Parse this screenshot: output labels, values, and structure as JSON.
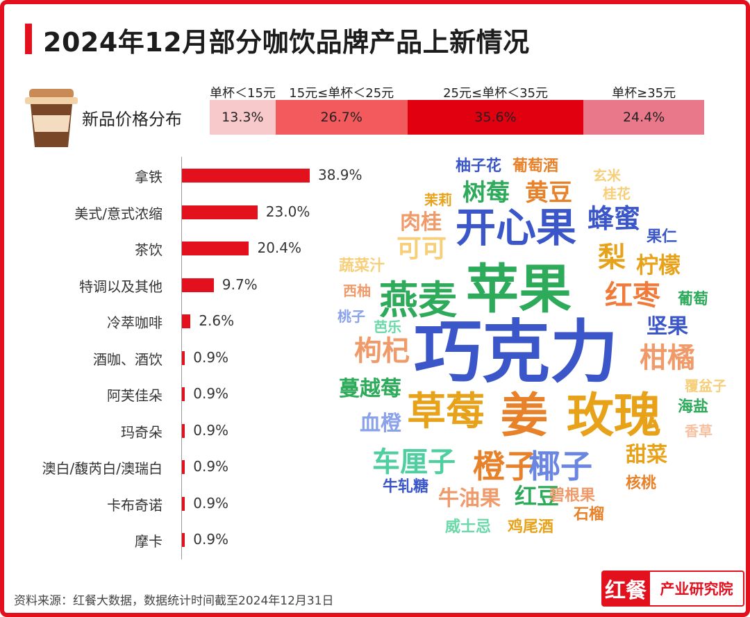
{
  "title": "2024年12月部分咖饮品牌产品上新情况",
  "colors": {
    "accent": "#e3101e"
  },
  "price_distribution": {
    "label": "新品价格分布",
    "segments": [
      {
        "header": "单杯＜15元",
        "value": "13.3%",
        "percent": 13.3,
        "color": "#f8c9cb"
      },
      {
        "header": "15元≤单杯＜25元",
        "value": "26.7%",
        "percent": 26.7,
        "color": "#f25a5e"
      },
      {
        "header": "25元≤单杯＜35元",
        "value": "35.6%",
        "percent": 35.6,
        "color": "#e0000f"
      },
      {
        "header": "单杯≥35元",
        "value": "24.4%",
        "percent": 24.4,
        "color": "#e9788a"
      }
    ]
  },
  "chart_data": {
    "type": "bar",
    "categories": [
      "拿铁",
      "美式/意式浓缩",
      "茶饮",
      "特调以及其他",
      "冷萃咖啡",
      "酒咖、酒饮",
      "阿芙佳朵",
      "玛奇朵",
      "澳白/馥芮白/澳瑞白",
      "卡布奇诺",
      "摩卡"
    ],
    "values": [
      38.9,
      23.0,
      20.4,
      9.7,
      2.6,
      0.9,
      0.9,
      0.9,
      0.9,
      0.9,
      0.9
    ],
    "labels": [
      "38.9%",
      "23.0%",
      "20.4%",
      "9.7%",
      "2.6%",
      "0.9%",
      "0.9%",
      "0.9%",
      "0.9%",
      "0.9%",
      "0.9%"
    ],
    "orientation": "horizontal",
    "color": "#e3101e"
  },
  "word_cloud": [
    {
      "text": "巧克力",
      "color": "#3a56c9"
    },
    {
      "text": "苹果",
      "color": "#2daa5a"
    },
    {
      "text": "开心果",
      "color": "#3a56c9"
    },
    {
      "text": "姜",
      "color": "#e8822a"
    },
    {
      "text": "玫瑰",
      "color": "#e8a21a"
    },
    {
      "text": "燕麦",
      "color": "#2daa5a"
    },
    {
      "text": "草莓",
      "color": "#e8a21a"
    },
    {
      "text": "橙子",
      "color": "#e8822a"
    },
    {
      "text": "椰子",
      "color": "#6a86e0"
    },
    {
      "text": "红枣",
      "color": "#f07a3a"
    },
    {
      "text": "梨",
      "color": "#e8a21a"
    },
    {
      "text": "车厘子",
      "color": "#4fcfa0"
    },
    {
      "text": "枸杞",
      "color": "#f09a6a"
    },
    {
      "text": "柑橘",
      "color": "#f09a6a"
    },
    {
      "text": "蜂蜜",
      "color": "#3a56c9"
    },
    {
      "text": "树莓",
      "color": "#2daa5a"
    },
    {
      "text": "黄豆",
      "color": "#e8822a"
    },
    {
      "text": "可可",
      "color": "#f7cf7a"
    },
    {
      "text": "柠檬",
      "color": "#e8a21a"
    },
    {
      "text": "坚果",
      "color": "#3a56c9"
    },
    {
      "text": "蔓越莓",
      "color": "#2daa5a"
    },
    {
      "text": "血橙",
      "color": "#8aa2ea"
    },
    {
      "text": "肉桂",
      "color": "#f09a6a"
    },
    {
      "text": "红豆",
      "color": "#2daa5a"
    },
    {
      "text": "牛油果",
      "color": "#f09a6a"
    },
    {
      "text": "甜菜",
      "color": "#e8a21a"
    },
    {
      "text": "柚子花",
      "color": "#3a56c9"
    },
    {
      "text": "葡萄酒",
      "color": "#e8822a"
    },
    {
      "text": "玄米",
      "color": "#f7cf7a"
    },
    {
      "text": "茉莉",
      "color": "#e8a21a"
    },
    {
      "text": "桂花",
      "color": "#f7cf7a"
    },
    {
      "text": "果仁",
      "color": "#3a56c9"
    },
    {
      "text": "蔬菜汁",
      "color": "#f7cf7a"
    },
    {
      "text": "西柚",
      "color": "#f09a6a"
    },
    {
      "text": "葡萄",
      "color": "#2daa5a"
    },
    {
      "text": "桃子",
      "color": "#8aa2ea"
    },
    {
      "text": "芭乐",
      "color": "#6ad8a8"
    },
    {
      "text": "覆盆子",
      "color": "#f7cf7a"
    },
    {
      "text": "海盐",
      "color": "#2daa5a"
    },
    {
      "text": "香草",
      "color": "#f7c0a0"
    },
    {
      "text": "牛轧糖",
      "color": "#3a56c9"
    },
    {
      "text": "核桃",
      "color": "#e8822a"
    },
    {
      "text": "碧根果",
      "color": "#f09a6a"
    },
    {
      "text": "石榴",
      "color": "#e8822a"
    },
    {
      "text": "威士忌",
      "color": "#6ad8a8"
    },
    {
      "text": "鸡尾酒",
      "color": "#e8a21a"
    }
  ],
  "source": "资料来源：红餐大数据，数据统计时间截至2024年12月31日",
  "logo": {
    "mark": "红餐",
    "text": "产业研究院"
  }
}
